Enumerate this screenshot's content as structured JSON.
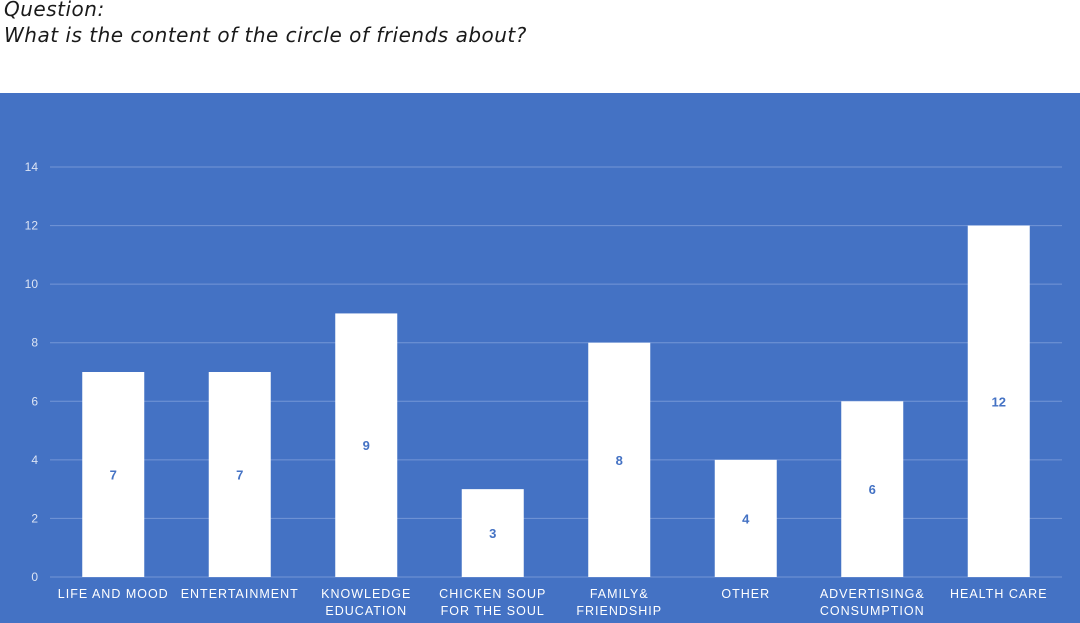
{
  "header": {
    "question_label": "Question:",
    "question_text": "What is the content of the circle of friends about?"
  },
  "colors": {
    "panel_bg": "#4472C4",
    "bar_fill": "#FFFFFF",
    "grid": "#7396D6",
    "tick_text": "#DCE4F4",
    "category_text": "#FFFFFF",
    "data_label": "#4472C4"
  },
  "chart_data": {
    "type": "bar",
    "title": "",
    "xlabel": "",
    "ylabel": "",
    "ylim": [
      0,
      14
    ],
    "yticks": [
      0,
      2,
      4,
      6,
      8,
      10,
      12,
      14
    ],
    "grid": true,
    "categories": [
      [
        "LIFE AND MOOD"
      ],
      [
        "ENTERTAINMENT"
      ],
      [
        "KNOWLEDGE",
        "EDUCATION"
      ],
      [
        "CHICKEN SOUP",
        "FOR THE SOUL"
      ],
      [
        "FAMILY&",
        "FRIENDSHIP"
      ],
      [
        "OTHER"
      ],
      [
        "ADVERTISING&",
        "CONSUMPTION"
      ],
      [
        "HEALTH CARE"
      ]
    ],
    "values": [
      7,
      7,
      9,
      3,
      8,
      4,
      6,
      12
    ]
  }
}
